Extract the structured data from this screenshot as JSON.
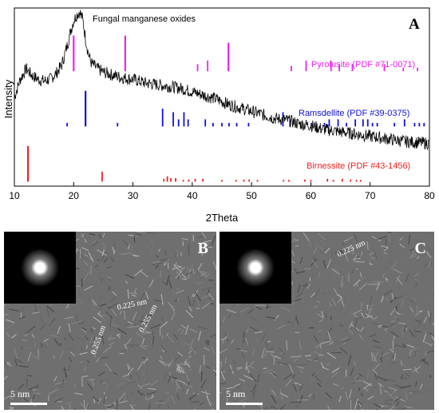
{
  "chart_data": {
    "type": "line",
    "panel_label": "A",
    "xlabel": "2Theta",
    "ylabel": "Intensity",
    "xlim": [
      10,
      80
    ],
    "x_ticks": [
      10,
      20,
      30,
      40,
      50,
      60,
      70,
      80
    ],
    "grid": false,
    "series": [
      {
        "name": "Fungal manganese oxides",
        "color": "#000000",
        "x": [
          10,
          11,
          12,
          13,
          14,
          15,
          16,
          17,
          18,
          19,
          19.5,
          20,
          20.5,
          21,
          21.5,
          22,
          22.5,
          23,
          24,
          25,
          26,
          27,
          28,
          30,
          32,
          34,
          36,
          38,
          40,
          42,
          44,
          46,
          48,
          50,
          52,
          54,
          56,
          58,
          60,
          62,
          64,
          66,
          68,
          70,
          72,
          74,
          76,
          78,
          80
        ],
        "y": [
          0.5,
          0.6,
          0.66,
          0.62,
          0.6,
          0.59,
          0.6,
          0.63,
          0.68,
          0.8,
          0.87,
          0.93,
          0.96,
          0.98,
          0.94,
          0.83,
          0.74,
          0.69,
          0.66,
          0.64,
          0.63,
          0.62,
          0.61,
          0.6,
          0.58,
          0.57,
          0.56,
          0.55,
          0.53,
          0.51,
          0.49,
          0.46,
          0.44,
          0.42,
          0.4,
          0.38,
          0.37,
          0.35,
          0.34,
          0.32,
          0.31,
          0.3,
          0.29,
          0.28,
          0.27,
          0.26,
          0.25,
          0.245,
          0.24
        ]
      }
    ],
    "reference_patterns": [
      {
        "name": "Pyrolusite (PDF #71-0071)",
        "color": "#ee22ee",
        "base": 0.645,
        "peaks": [
          [
            20.0,
            1.0
          ],
          [
            28.7,
            1.0
          ],
          [
            40.9,
            0.2
          ],
          [
            42.6,
            0.3
          ],
          [
            46.1,
            0.8
          ],
          [
            56.7,
            0.15
          ],
          [
            59.2,
            0.3
          ],
          [
            63.4,
            0.3
          ],
          [
            64.8,
            0.2
          ],
          [
            67.0,
            0.2
          ],
          [
            72.4,
            0.2
          ],
          [
            75.6,
            0.1
          ],
          [
            78.0,
            0.1
          ]
        ]
      },
      {
        "name": "Ramsdellite (PDF #39-0375)",
        "color": "#1111dd",
        "base": 0.335,
        "peaks": [
          [
            18.9,
            0.1
          ],
          [
            22.0,
            1.0
          ],
          [
            27.4,
            0.1
          ],
          [
            35.0,
            0.5
          ],
          [
            36.8,
            0.4
          ],
          [
            37.7,
            0.2
          ],
          [
            38.6,
            0.4
          ],
          [
            39.3,
            0.2
          ],
          [
            42.2,
            0.2
          ],
          [
            43.5,
            0.1
          ],
          [
            45.0,
            0.1
          ],
          [
            46.2,
            0.1
          ],
          [
            47.5,
            0.1
          ],
          [
            49.5,
            0.1
          ],
          [
            55.3,
            0.4
          ],
          [
            56.5,
            0.2
          ],
          [
            60.1,
            0.1
          ],
          [
            62.3,
            0.1
          ],
          [
            63.1,
            0.2
          ],
          [
            64.6,
            0.2
          ],
          [
            66.0,
            0.1
          ],
          [
            67.5,
            0.2
          ],
          [
            68.8,
            0.2
          ],
          [
            69.6,
            0.2
          ],
          [
            70.4,
            0.1
          ],
          [
            71.2,
            0.1
          ],
          [
            74.1,
            0.1
          ],
          [
            75.8,
            0.2
          ],
          [
            77.5,
            0.1
          ],
          [
            78.3,
            0.1
          ],
          [
            79.1,
            0.1
          ]
        ]
      },
      {
        "name": "Birnessite (PDF #43-1456)",
        "color": "#ee2222",
        "base": 0.025,
        "peaks": [
          [
            12.3,
            1.0
          ],
          [
            24.8,
            0.28
          ],
          [
            35.2,
            0.08
          ],
          [
            35.8,
            0.15
          ],
          [
            36.4,
            0.1
          ],
          [
            37.2,
            0.1
          ],
          [
            38.5,
            0.05
          ],
          [
            39.4,
            0.06
          ],
          [
            40.5,
            0.08
          ],
          [
            41.8,
            0.08
          ],
          [
            45.0,
            0.05
          ],
          [
            47.4,
            0.05
          ],
          [
            48.7,
            0.06
          ],
          [
            49.6,
            0.06
          ],
          [
            51.0,
            0.05
          ],
          [
            55.4,
            0.05
          ],
          [
            56.3,
            0.05
          ],
          [
            59.0,
            0.06
          ],
          [
            60.0,
            0.05
          ],
          [
            62.8,
            0.08
          ],
          [
            63.8,
            0.05
          ],
          [
            65.3,
            0.08
          ],
          [
            66.7,
            0.06
          ],
          [
            67.7,
            0.05
          ],
          [
            68.4,
            0.05
          ]
        ]
      }
    ]
  },
  "micrographs": [
    {
      "panel_label": "B",
      "scale_bar": "5 nm",
      "lattice_spacings": [
        {
          "label": "0.225 nm",
          "rotation_deg": -12
        },
        {
          "label": "0.255 nm",
          "rotation_deg": -62
        },
        {
          "label": "0.255 nm",
          "rotation_deg": -70
        }
      ]
    },
    {
      "panel_label": "C",
      "scale_bar": "5 nm",
      "lattice_spacings": [
        {
          "label": "0.225 nm",
          "rotation_deg": -25
        }
      ]
    }
  ]
}
